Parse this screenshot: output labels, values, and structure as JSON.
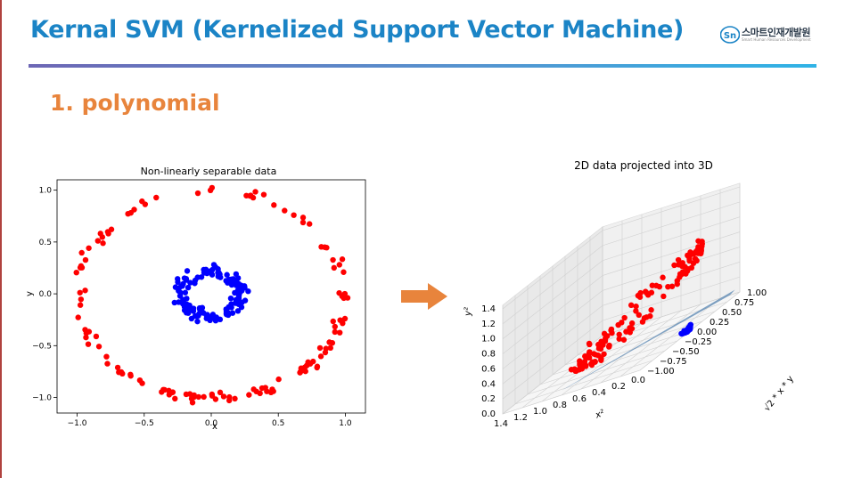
{
  "slide": {
    "title": "Kernal SVM (Kernelized Support Vector Machine)",
    "section_heading": "1. polynomial"
  },
  "brand": {
    "name": "스마트인재개발원",
    "subtitle": "Smart Human Resources Development",
    "logo_text": "Sn",
    "logo_color": "#1b84c6"
  },
  "colors": {
    "title": "#1b84c6",
    "heading": "#e8843c",
    "arrow": "#e8843c",
    "outer_class": "#ff0000",
    "inner_class": "#0000ff",
    "plane": "#4f7fae"
  },
  "chart_data": [
    {
      "type": "scatter",
      "title": "Non-linearly separable data",
      "xlabel": "x",
      "ylabel": "y",
      "xlim": [
        -1.15,
        1.15
      ],
      "ylim": [
        -1.15,
        1.1
      ],
      "xticks": [
        "−1.0",
        "−0.5",
        "0.0",
        "0.5",
        "1.0"
      ],
      "yticks": [
        "−1.0",
        "−0.5",
        "0.0",
        "0.5",
        "1.0"
      ],
      "xtick_values": [
        -1.0,
        -0.5,
        0.0,
        0.5,
        1.0
      ],
      "ytick_values": [
        -1.0,
        -0.5,
        0.0,
        0.5,
        1.0
      ],
      "grid": false,
      "series": [
        {
          "color": "#ff0000",
          "shape": "ring",
          "radius": 1.0,
          "noise": 0.06,
          "count": 130
        },
        {
          "color": "#0000ff",
          "shape": "ring",
          "radius": 0.22,
          "noise": 0.07,
          "count": 130
        }
      ]
    },
    {
      "type": "scatter",
      "title": "2D data projected into 3D",
      "xlabel": "x²",
      "ylabel": "y²",
      "zlabel": "√2 * x * y",
      "xticks": [
        "1.4",
        "1.2",
        "1.0",
        "0.8",
        "0.6",
        "0.4",
        "0.2",
        "0.0"
      ],
      "yticks": [
        "0.0",
        "0.2",
        "0.4",
        "0.6",
        "0.8",
        "1.0",
        "1.2",
        "1.4"
      ],
      "zticks": [
        "1.00",
        "0.75",
        "0.50",
        "0.25",
        "0.00",
        "−0.25",
        "−0.50",
        "−0.75",
        "−1.00"
      ],
      "xtick_values": [
        1.4,
        1.2,
        1.0,
        0.8,
        0.6,
        0.4,
        0.2,
        0.0
      ],
      "ytick_values": [
        0.0,
        0.2,
        0.4,
        0.6,
        0.8,
        1.0,
        1.2,
        1.4
      ],
      "ztick_values": [
        1.0,
        0.75,
        0.5,
        0.25,
        0.0,
        -0.25,
        -0.5,
        -0.75,
        -1.0
      ],
      "grid": true,
      "series": [
        {
          "color": "#ff0000",
          "count": 130
        },
        {
          "color": "#0000ff",
          "count": 130
        }
      ]
    }
  ]
}
